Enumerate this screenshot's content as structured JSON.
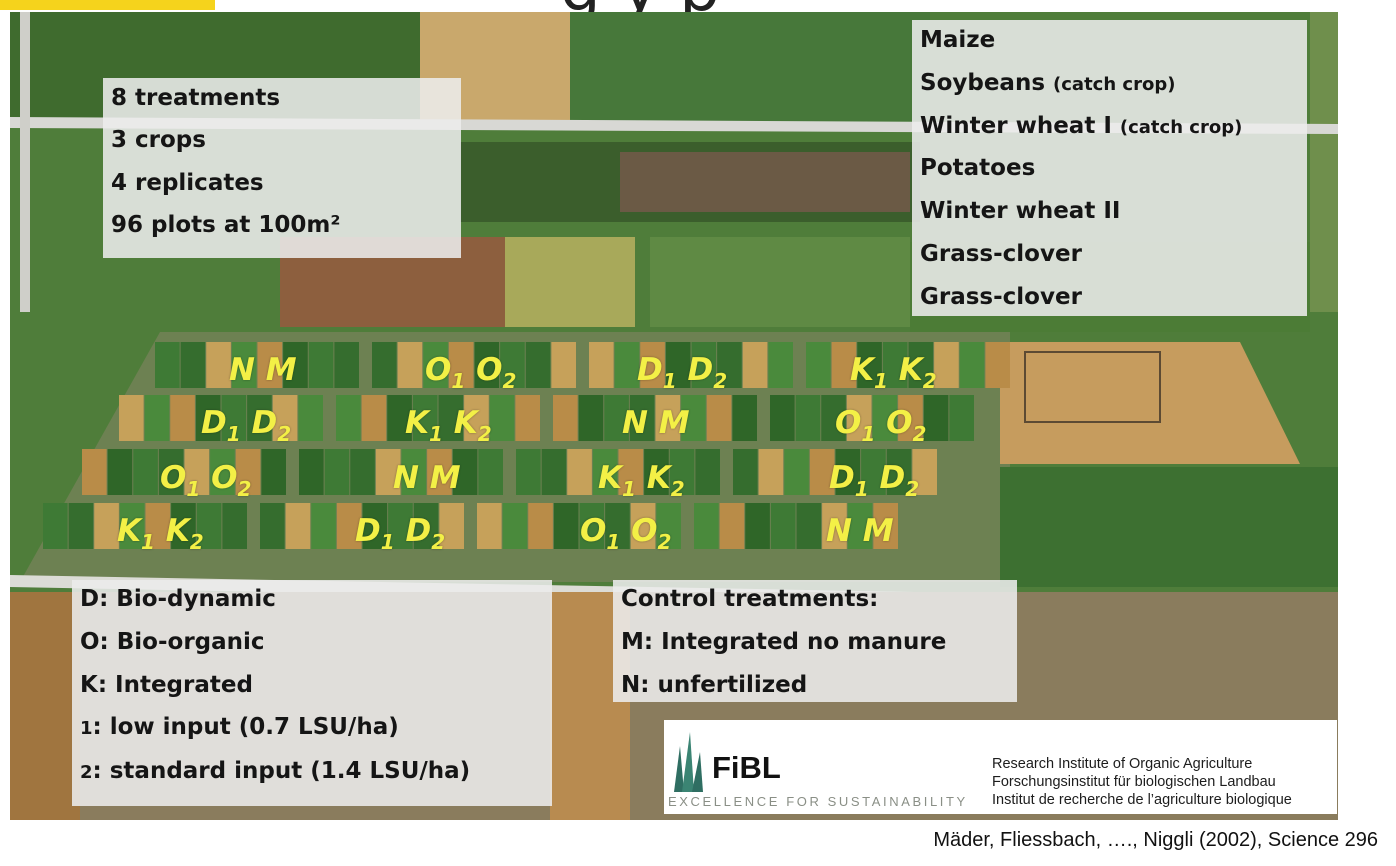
{
  "colors": {
    "accent": "#f5d31c",
    "plot_label": "#f3f046",
    "panel_bg": "rgba(236,236,236,0.88)"
  },
  "slide": {
    "title_fragment": "g y        p"
  },
  "study_panel": {
    "lines": [
      "8 treatments",
      "3 crops",
      "4 replicates",
      "96 plots at 100m²"
    ]
  },
  "rotation_panel": {
    "items": [
      {
        "crop": "Maize",
        "note": ""
      },
      {
        "crop": "Soybeans",
        "note": "(catch crop)"
      },
      {
        "crop": "Winter wheat I",
        "note": "(catch crop)"
      },
      {
        "crop": "Potatoes",
        "note": ""
      },
      {
        "crop": "Winter wheat II",
        "note": ""
      },
      {
        "crop": "Grass-clover",
        "note": ""
      },
      {
        "crop": "Grass-clover",
        "note": ""
      }
    ]
  },
  "plot_grid": {
    "rows": [
      [
        {
          "a": "N",
          "b": "M"
        },
        {
          "a": "O",
          "b": "O"
        },
        {
          "a": "D",
          "b": "D"
        },
        {
          "a": "K",
          "b": "K"
        }
      ],
      [
        {
          "a": "D",
          "b": "D"
        },
        {
          "a": "K",
          "b": "K"
        },
        {
          "a": "N",
          "b": "M"
        },
        {
          "a": "O",
          "b": "O"
        }
      ],
      [
        {
          "a": "O",
          "b": "O"
        },
        {
          "a": "N",
          "b": "M"
        },
        {
          "a": "K",
          "b": "K"
        },
        {
          "a": "D",
          "b": "D"
        }
      ],
      [
        {
          "a": "K",
          "b": "K"
        },
        {
          "a": "D",
          "b": "D"
        },
        {
          "a": "O",
          "b": "O"
        },
        {
          "a": "N",
          "b": "M"
        }
      ]
    ],
    "sub_one": "1",
    "sub_two": "2"
  },
  "legend_panel": {
    "lines": [
      "D: Bio-dynamic",
      "O: Bio-organic",
      "K: Integrated"
    ],
    "low_num": "1",
    "low_text": ": low input (0.7 LSU/ha)",
    "std_num": "2",
    "std_text": ": standard input (1.4 LSU/ha)"
  },
  "control_panel": {
    "lines": [
      "Control treatments:",
      "M: Integrated no manure",
      "N: unfertilized"
    ]
  },
  "fibl": {
    "name": "FiBL",
    "tagline": "EXCELLENCE FOR SUSTAINABILITY",
    "institute_lines": [
      "Research Institute of Organic Agriculture",
      "Forschungsinstitut für biologischen Landbau",
      "Institut de recherche de l’agriculture biologique"
    ]
  },
  "citation": "Mäder, Fliessbach, ….,  Niggli (2002), Science 296"
}
